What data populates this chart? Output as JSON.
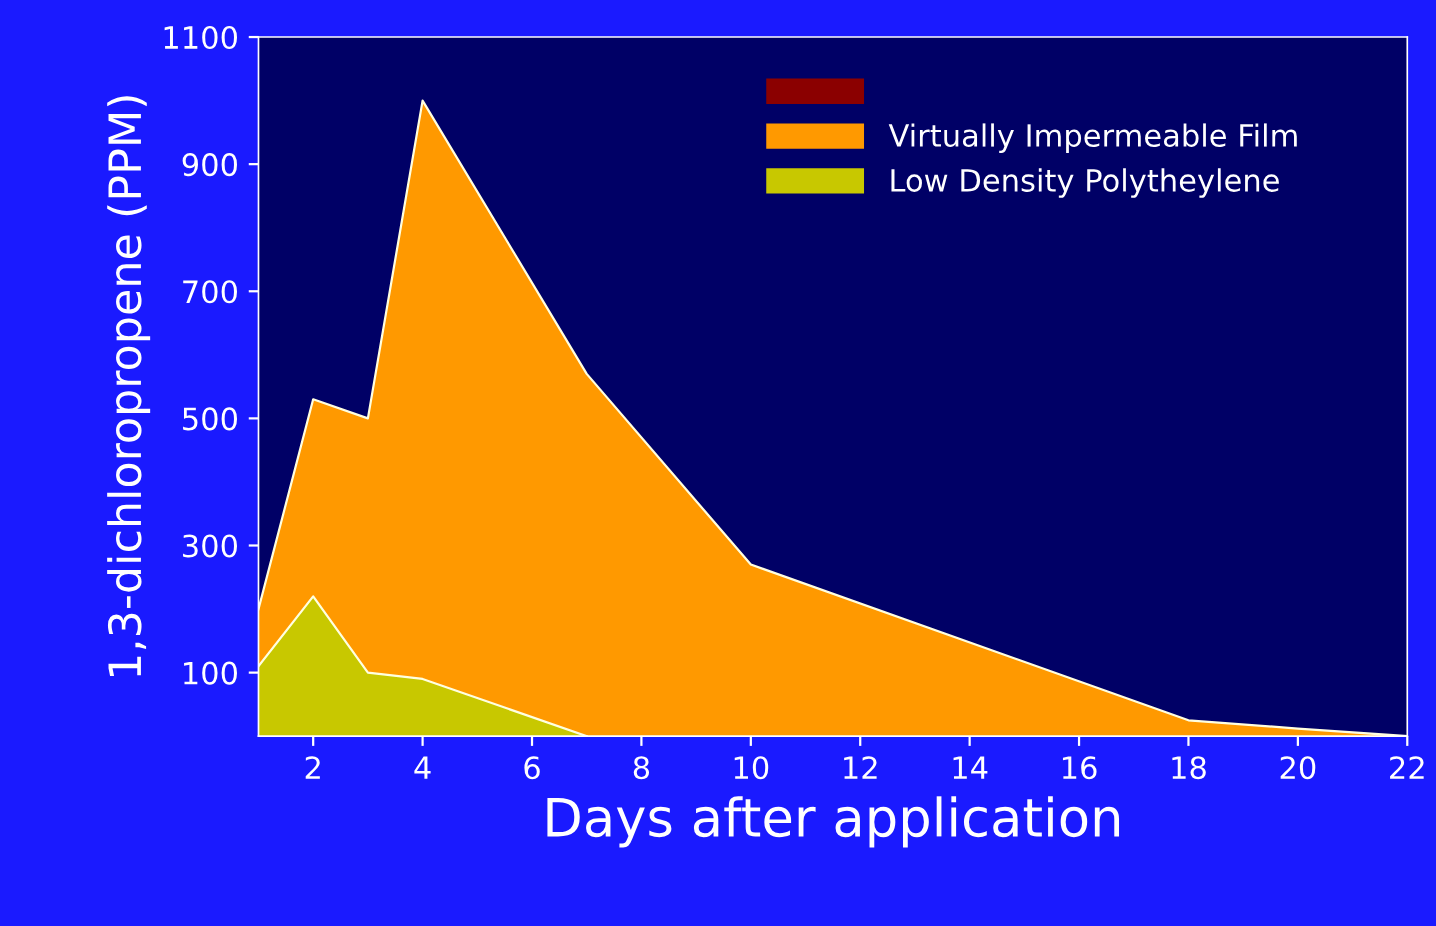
{
  "chart_data": {
    "type": "area",
    "xlabel": "Days after application",
    "ylabel": "1,3-dichloropropene (PPM)",
    "series": [
      {
        "name": "Virtually Impermeable Film",
        "color": "#ff9900",
        "x": [
          1,
          2,
          3,
          4,
          7,
          10,
          18,
          20,
          22
        ],
        "values": [
          200,
          530,
          500,
          1000,
          570,
          270,
          25,
          12,
          0
        ]
      },
      {
        "name": "Low Density Polytheylene",
        "color": "#c8c800",
        "x": [
          1,
          2,
          3,
          4,
          7
        ],
        "values": [
          110,
          220,
          100,
          90,
          0
        ]
      }
    ],
    "xlim": [
      1,
      22
    ],
    "xticks": [
      2,
      4,
      6,
      8,
      10,
      12,
      14,
      16,
      18,
      20,
      22
    ],
    "ylim": [
      0,
      1100
    ],
    "yticks": [
      100,
      300,
      500,
      700,
      900,
      1100
    ],
    "grid": false,
    "legend": "top right"
  }
}
